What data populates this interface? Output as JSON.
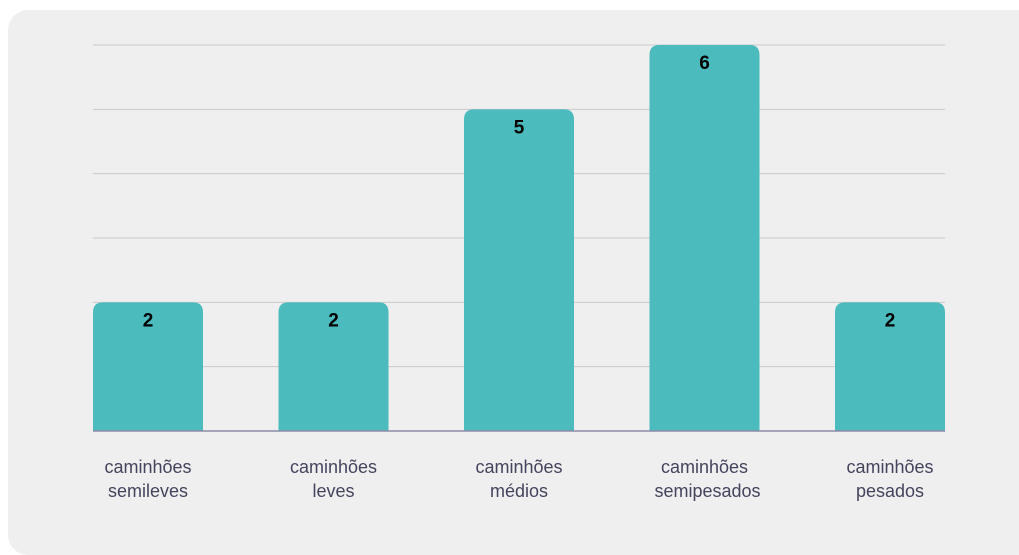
{
  "chart_data": {
    "type": "bar",
    "categories": [
      "caminhões semileves",
      "caminhões leves",
      "caminhões médios",
      "caminhões semipesados",
      "caminhões pesados"
    ],
    "values": [
      2,
      2,
      5,
      6,
      2
    ],
    "color": "#4bbbbe",
    "ylim": [
      0,
      6
    ],
    "yticks": [
      0,
      1,
      2,
      3,
      4,
      5,
      6
    ],
    "grid": true
  }
}
